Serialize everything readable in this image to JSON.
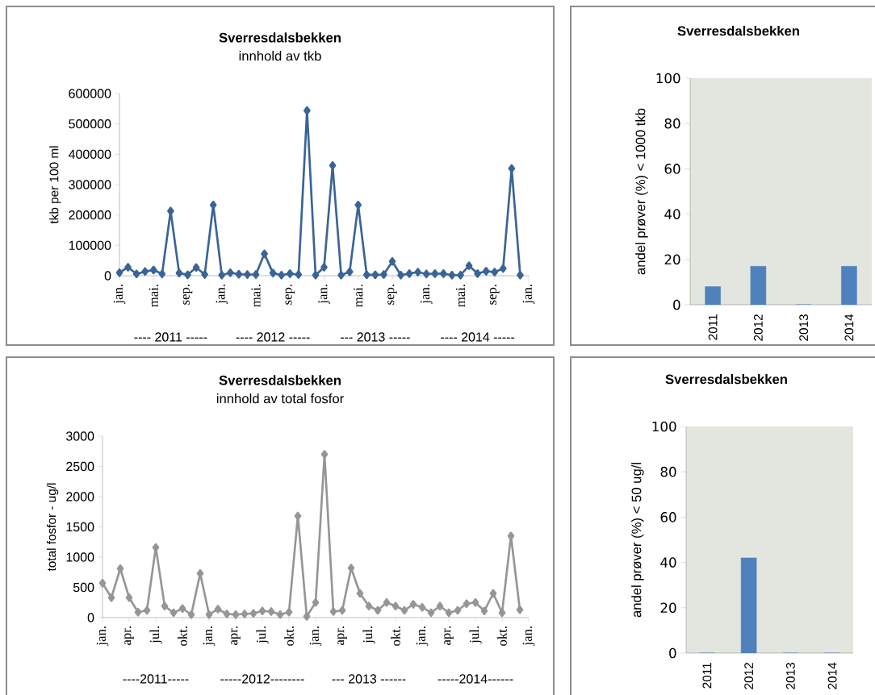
{
  "chart_data": [
    {
      "type": "line",
      "title": "Sverresdalsbekken",
      "subtitle": "innhold av tkb",
      "ylabel": "tkb per 100 ml",
      "marker": "diamond",
      "x": [
        "2011-01",
        "2011-02",
        "2011-03",
        "2011-04",
        "2011-05",
        "2011-06",
        "2011-07",
        "2011-08",
        "2011-09",
        "2011-10",
        "2011-11",
        "2011-12",
        "2012-01",
        "2012-02",
        "2012-03",
        "2012-04",
        "2012-05",
        "2012-06",
        "2012-07",
        "2012-08",
        "2012-09",
        "2012-10",
        "2012-11",
        "2012-12",
        "2013-01",
        "2013-02",
        "2013-03",
        "2013-04",
        "2013-05",
        "2013-06",
        "2013-07",
        "2013-08",
        "2013-09",
        "2013-10",
        "2013-11",
        "2013-12",
        "2014-01",
        "2014-02",
        "2014-03",
        "2014-04",
        "2014-05",
        "2014-06",
        "2014-07",
        "2014-08",
        "2014-09",
        "2014-10",
        "2014-11",
        "2014-12"
      ],
      "series": [
        {
          "color": "#3a6496",
          "values": [
            10000,
            28000,
            6000,
            14000,
            19000,
            6000,
            213000,
            9000,
            3000,
            27000,
            4000,
            233000,
            2000,
            10000,
            5000,
            4000,
            4000,
            72000,
            9000,
            2000,
            7000,
            4000,
            544000,
            2000,
            28000,
            363000,
            2000,
            13000,
            233000,
            3000,
            3000,
            4000,
            47000,
            2000,
            7000,
            12000,
            6000,
            7000,
            7000,
            2000,
            2000,
            33000,
            7000,
            15000,
            12000,
            24000,
            353000,
            2000
          ]
        }
      ],
      "xlim": [
        "2011-01",
        "2015-01"
      ],
      "xticks": [
        {
          "value": "2011-01",
          "label": "jan."
        },
        {
          "value": "2011-05",
          "label": "mai."
        },
        {
          "value": "2011-09",
          "label": "sep."
        },
        {
          "value": "2012-01",
          "label": "jan."
        },
        {
          "value": "2012-05",
          "label": "mai."
        },
        {
          "value": "2012-09",
          "label": "sep."
        },
        {
          "value": "2013-01",
          "label": "jan."
        },
        {
          "value": "2013-05",
          "label": "mai."
        },
        {
          "value": "2013-09",
          "label": "sep."
        },
        {
          "value": "2014-01",
          "label": "jan."
        },
        {
          "value": "2014-05",
          "label": "mai."
        },
        {
          "value": "2014-09",
          "label": "sep."
        },
        {
          "value": "2015-01",
          "label": "jan."
        }
      ],
      "ylim": [
        0,
        600000
      ],
      "yticks": [
        0,
        100000,
        200000,
        300000,
        400000,
        500000,
        600000
      ],
      "annotations": [
        "---- 2011 -----",
        "---- 2012 -----",
        "--- 2013 -----",
        "---- 2014 -----"
      ]
    },
    {
      "type": "bar",
      "title": "Sverresdalsbekken",
      "ylabel": "andel prøver (%) < 1000 tkb",
      "categories": [
        "2011",
        "2012",
        "2013",
        "2014"
      ],
      "values": [
        8,
        17,
        0,
        17
      ],
      "color": "#4f81bd",
      "ylim": [
        0,
        100
      ],
      "yticks": [
        0,
        20,
        40,
        60,
        80,
        100
      ]
    },
    {
      "type": "line",
      "title": "Sverresdalsbekken",
      "subtitle": "innhold av total fosfor",
      "ylabel": "total fosfor - ug/l",
      "marker": "diamond",
      "x": [
        "2011-01",
        "2011-02",
        "2011-03",
        "2011-04",
        "2011-05",
        "2011-06",
        "2011-07",
        "2011-08",
        "2011-09",
        "2011-10",
        "2011-11",
        "2011-12",
        "2012-01",
        "2012-02",
        "2012-03",
        "2012-04",
        "2012-05",
        "2012-06",
        "2012-07",
        "2012-08",
        "2012-09",
        "2012-10",
        "2012-11",
        "2012-12",
        "2013-01",
        "2013-02",
        "2013-03",
        "2013-04",
        "2013-05",
        "2013-06",
        "2013-07",
        "2013-08",
        "2013-09",
        "2013-10",
        "2013-11",
        "2013-12",
        "2014-01",
        "2014-02",
        "2014-03",
        "2014-04",
        "2014-05",
        "2014-06",
        "2014-07",
        "2014-08",
        "2014-09",
        "2014-10",
        "2014-11",
        "2014-12"
      ],
      "series": [
        {
          "color": "#969696",
          "values": [
            570,
            330,
            810,
            330,
            90,
            120,
            1160,
            190,
            80,
            150,
            50,
            730,
            50,
            140,
            60,
            50,
            60,
            70,
            110,
            100,
            50,
            90,
            1680,
            20,
            250,
            2700,
            100,
            120,
            820,
            400,
            190,
            120,
            250,
            190,
            120,
            220,
            170,
            80,
            190,
            80,
            120,
            230,
            250,
            110,
            400,
            80,
            1350,
            130
          ]
        }
      ],
      "xlim": [
        "2011-01",
        "2015-01"
      ],
      "xticks": [
        {
          "value": "2011-01",
          "label": "jan."
        },
        {
          "value": "2011-04",
          "label": "apr."
        },
        {
          "value": "2011-07",
          "label": "jul."
        },
        {
          "value": "2011-10",
          "label": "okt."
        },
        {
          "value": "2012-01",
          "label": "jan."
        },
        {
          "value": "2012-04",
          "label": "apr."
        },
        {
          "value": "2012-07",
          "label": "jul."
        },
        {
          "value": "2012-10",
          "label": "okt."
        },
        {
          "value": "2013-01",
          "label": "jan."
        },
        {
          "value": "2013-04",
          "label": "apr."
        },
        {
          "value": "2013-07",
          "label": "jul."
        },
        {
          "value": "2013-10",
          "label": "okt."
        },
        {
          "value": "2014-01",
          "label": "jan."
        },
        {
          "value": "2014-04",
          "label": "apr."
        },
        {
          "value": "2014-07",
          "label": "jul."
        },
        {
          "value": "2014-10",
          "label": "okt."
        },
        {
          "value": "2015-01",
          "label": "jan."
        }
      ],
      "ylim": [
        0,
        3000
      ],
      "yticks": [
        0,
        500,
        1000,
        1500,
        2000,
        2500,
        3000
      ],
      "annotations": [
        "----2011-----",
        "-----2012--------",
        "--- 2013 ------",
        "-----2014------"
      ]
    },
    {
      "type": "bar",
      "title": "Sverresdalsbekken",
      "ylabel": "andel prøver (%) < 50 ug/l",
      "categories": [
        "2011",
        "2012",
        "2013",
        "2014"
      ],
      "values": [
        0,
        42,
        0,
        0
      ],
      "color": "#4f81bd",
      "ylim": [
        0,
        100
      ],
      "yticks": [
        0,
        20,
        40,
        60,
        80,
        100
      ]
    }
  ]
}
